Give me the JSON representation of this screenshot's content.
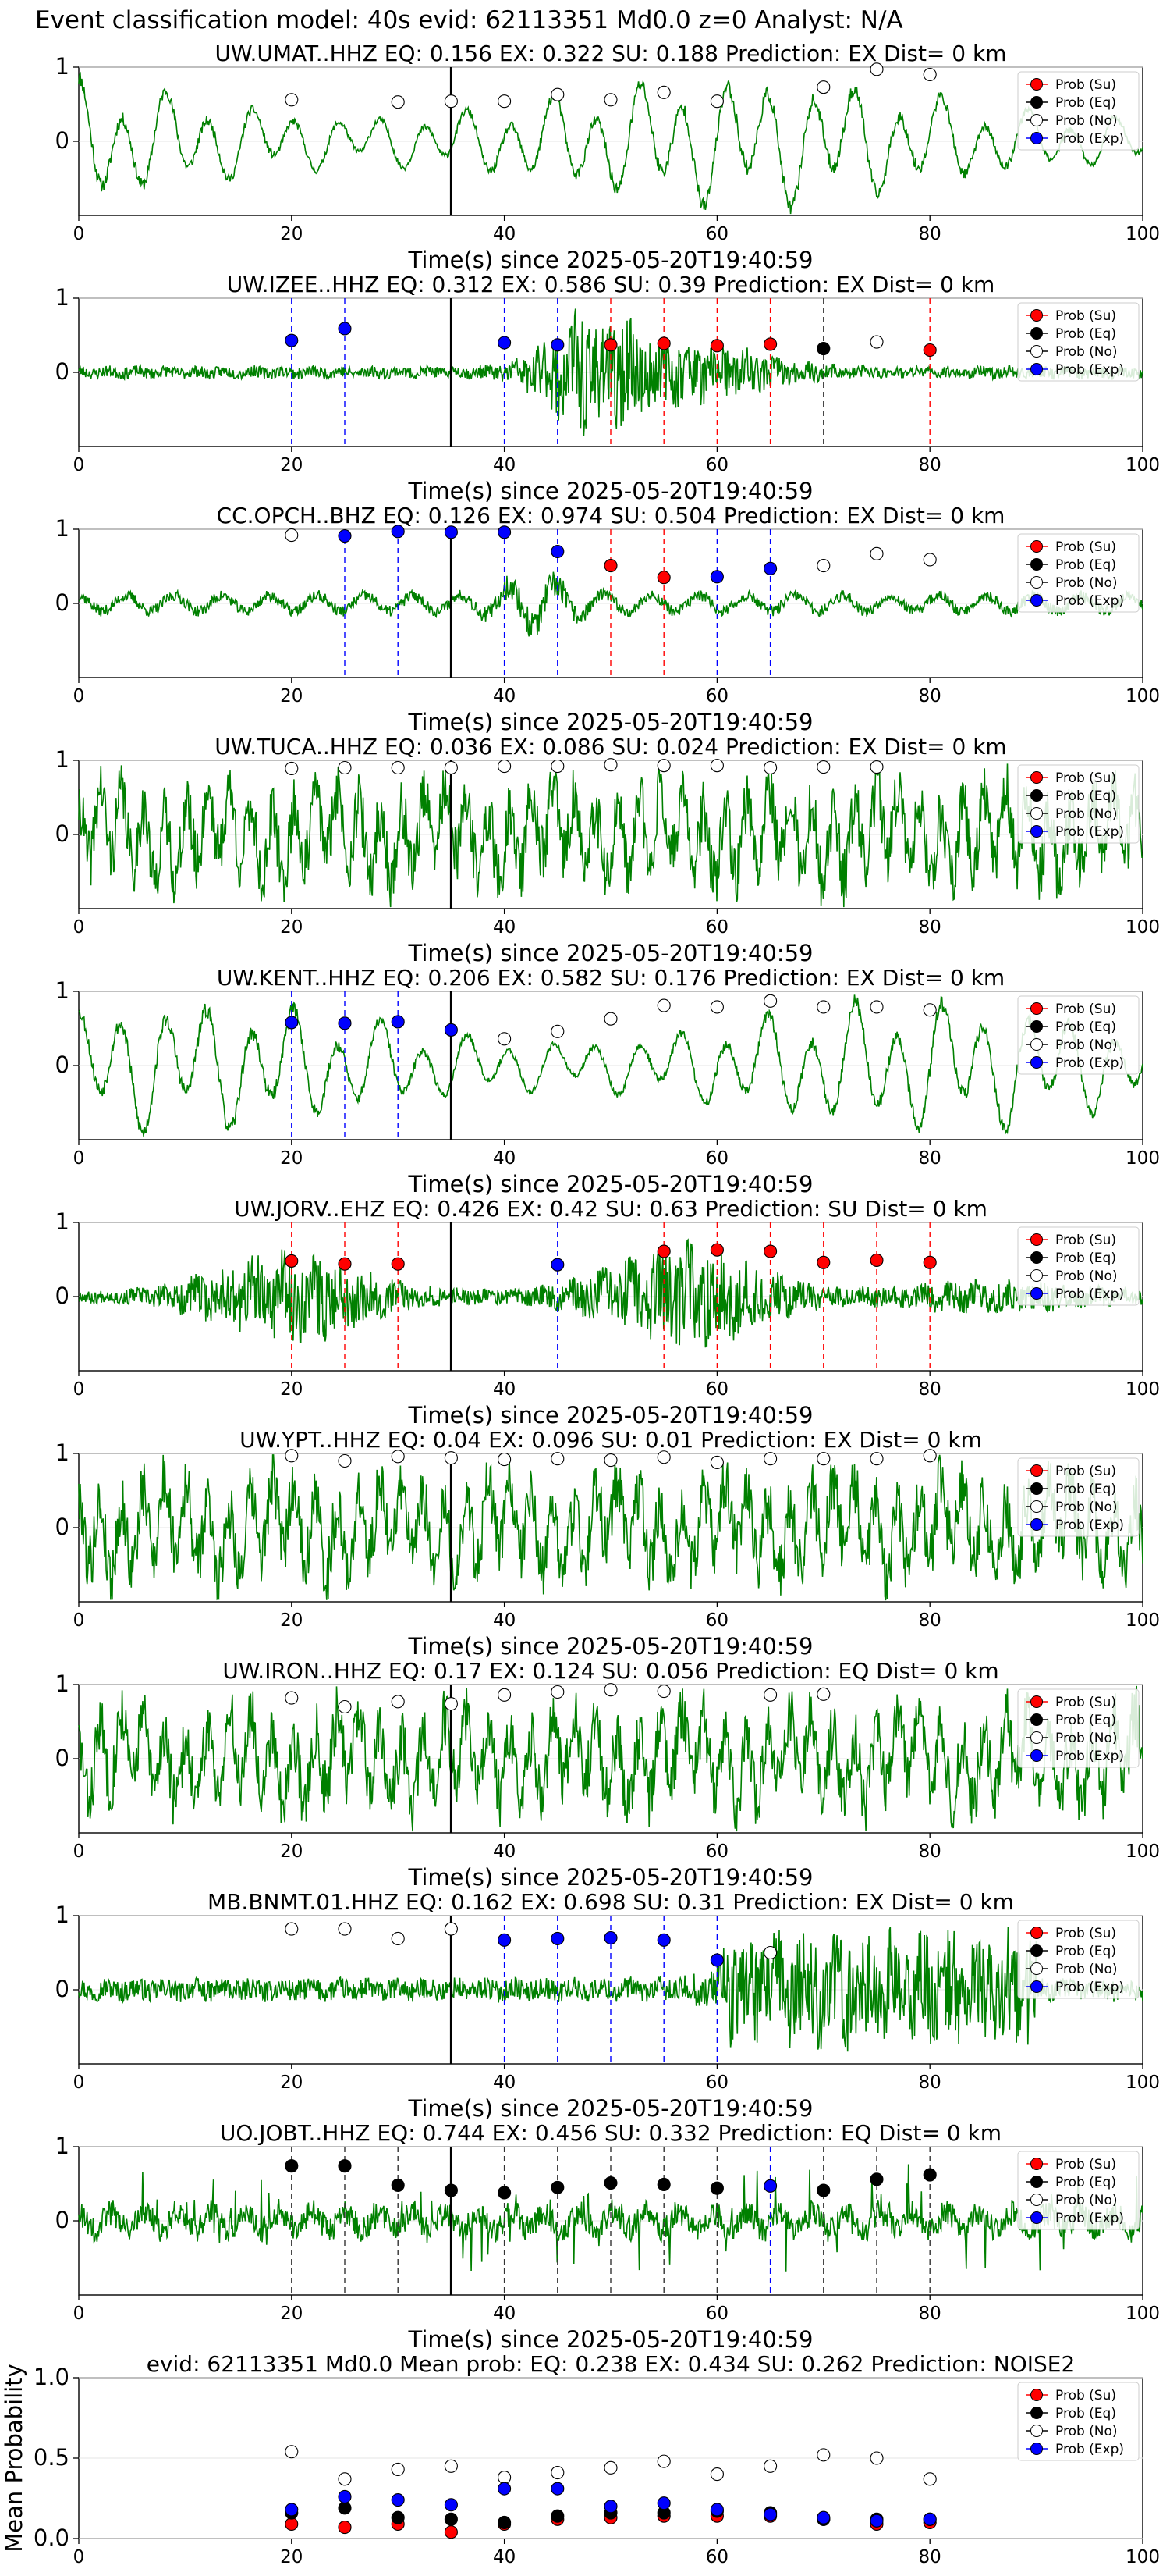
{
  "figure": {
    "suptitle": "Event classification model: 40s evid: 62113351 Md0.0 z=0 Analyst: N/A",
    "x_axis_label": "Time(s) since 2025-05-20T19:40:59",
    "legend": [
      "Prob (Su)",
      "Prob (Eq)",
      "Prob (No)",
      "Prob (Exp)"
    ],
    "colors": {
      "waveform": "#008000",
      "su": "#ff0000",
      "eq": "#000000",
      "no": "#ffffff",
      "exp": "#0000ff",
      "onset_line": "#000000"
    }
  },
  "chart_data": [
    {
      "type": "line",
      "title": "UW.UMAT..HHZ   EQ: 0.156  EX: 0.322  SU: 0.188   Prediction: EX    Dist= 0 km",
      "station": "UW.UMAT..HHZ",
      "eq": 0.156,
      "ex": 0.322,
      "su": 0.188,
      "prediction": "EX",
      "dist_km": 0,
      "xlim": [
        0,
        100
      ],
      "ylim": [
        -1,
        1
      ],
      "xticks": [
        0,
        20,
        40,
        60,
        80,
        100
      ],
      "yticks": [
        0,
        1
      ],
      "xlabel": "Time(s) since 2025-05-20T19:40:59",
      "onset": 35,
      "grid": true,
      "legend_position": "upper right",
      "wave": {
        "style": "lowfreq",
        "seed": 11
      },
      "points": [
        {
          "t": 20,
          "p": 0.56,
          "c": "no"
        },
        {
          "t": 30,
          "p": 0.53,
          "c": "no"
        },
        {
          "t": 35,
          "p": 0.54,
          "c": "no"
        },
        {
          "t": 40,
          "p": 0.54,
          "c": "no"
        },
        {
          "t": 45,
          "p": 0.63,
          "c": "no"
        },
        {
          "t": 50,
          "p": 0.56,
          "c": "no"
        },
        {
          "t": 55,
          "p": 0.66,
          "c": "no"
        },
        {
          "t": 60,
          "p": 0.54,
          "c": "no"
        },
        {
          "t": 70,
          "p": 0.73,
          "c": "no"
        },
        {
          "t": 75,
          "p": 0.97,
          "c": "no"
        },
        {
          "t": 80,
          "p": 0.9,
          "c": "no"
        }
      ]
    },
    {
      "type": "line",
      "title": "UW.IZEE..HHZ   EQ: 0.312  EX: 0.586  SU: 0.39   Prediction: EX    Dist= 0 km",
      "station": "UW.IZEE..HHZ",
      "eq": 0.312,
      "ex": 0.586,
      "su": 0.39,
      "prediction": "EX",
      "dist_km": 0,
      "xlim": [
        0,
        100
      ],
      "ylim": [
        -1,
        1
      ],
      "xticks": [
        0,
        20,
        40,
        60,
        80,
        100
      ],
      "yticks": [
        0,
        1
      ],
      "xlabel": "Time(s) since 2025-05-20T19:40:59",
      "onset": 35,
      "grid": true,
      "legend_position": "upper right",
      "wave": {
        "style": "burst",
        "seed": 23
      },
      "points": [
        {
          "t": 20,
          "p": 0.43,
          "c": "exp"
        },
        {
          "t": 25,
          "p": 0.59,
          "c": "exp"
        },
        {
          "t": 40,
          "p": 0.4,
          "c": "exp"
        },
        {
          "t": 45,
          "p": 0.37,
          "c": "exp"
        },
        {
          "t": 50,
          "p": 0.37,
          "c": "su"
        },
        {
          "t": 55,
          "p": 0.39,
          "c": "su"
        },
        {
          "t": 60,
          "p": 0.36,
          "c": "su"
        },
        {
          "t": 65,
          "p": 0.38,
          "c": "su"
        },
        {
          "t": 70,
          "p": 0.32,
          "c": "eq"
        },
        {
          "t": 75,
          "p": 0.41,
          "c": "no"
        },
        {
          "t": 80,
          "p": 0.3,
          "c": "su"
        }
      ]
    },
    {
      "type": "line",
      "title": "CC.OPCH..BHZ   EQ: 0.126  EX: 0.974  SU: 0.504   Prediction: EX    Dist= 0 km",
      "station": "CC.OPCH..BHZ",
      "eq": 0.126,
      "ex": 0.974,
      "su": 0.504,
      "prediction": "EX",
      "dist_km": 0,
      "xlim": [
        0,
        100
      ],
      "ylim": [
        -1,
        1
      ],
      "xticks": [
        0,
        20,
        40,
        60,
        80,
        100
      ],
      "yticks": [
        0,
        1
      ],
      "xlabel": "Time(s) since 2025-05-20T19:40:59",
      "onset": 35,
      "grid": true,
      "legend_position": "upper right",
      "wave": {
        "style": "mixed",
        "seed": 37
      },
      "points": [
        {
          "t": 20,
          "p": 0.92,
          "c": "no"
        },
        {
          "t": 25,
          "p": 0.91,
          "c": "exp"
        },
        {
          "t": 30,
          "p": 0.97,
          "c": "exp"
        },
        {
          "t": 35,
          "p": 0.96,
          "c": "exp"
        },
        {
          "t": 40,
          "p": 0.96,
          "c": "exp"
        },
        {
          "t": 45,
          "p": 0.7,
          "c": "exp"
        },
        {
          "t": 50,
          "p": 0.51,
          "c": "su"
        },
        {
          "t": 55,
          "p": 0.35,
          "c": "su"
        },
        {
          "t": 60,
          "p": 0.36,
          "c": "exp"
        },
        {
          "t": 65,
          "p": 0.47,
          "c": "exp"
        },
        {
          "t": 70,
          "p": 0.51,
          "c": "no"
        },
        {
          "t": 75,
          "p": 0.67,
          "c": "no"
        },
        {
          "t": 80,
          "p": 0.59,
          "c": "no"
        }
      ]
    },
    {
      "type": "line",
      "title": "UW.TUCA..HHZ   EQ: 0.036  EX: 0.086  SU: 0.024   Prediction: EX    Dist= 0 km",
      "station": "UW.TUCA..HHZ",
      "eq": 0.036,
      "ex": 0.086,
      "su": 0.024,
      "prediction": "EX",
      "dist_km": 0,
      "xlim": [
        0,
        100
      ],
      "ylim": [
        -1,
        1
      ],
      "xticks": [
        0,
        20,
        40,
        60,
        80,
        100
      ],
      "yticks": [
        0,
        1
      ],
      "xlabel": "Time(s) since 2025-05-20T19:40:59",
      "onset": 35,
      "grid": true,
      "legend_position": "upper right",
      "wave": {
        "style": "noise",
        "seed": 41
      },
      "points": [
        {
          "t": 20,
          "p": 0.89,
          "c": "no"
        },
        {
          "t": 25,
          "p": 0.9,
          "c": "no"
        },
        {
          "t": 30,
          "p": 0.9,
          "c": "no"
        },
        {
          "t": 35,
          "p": 0.9,
          "c": "no"
        },
        {
          "t": 40,
          "p": 0.92,
          "c": "no"
        },
        {
          "t": 45,
          "p": 0.92,
          "c": "no"
        },
        {
          "t": 50,
          "p": 0.94,
          "c": "no"
        },
        {
          "t": 55,
          "p": 0.93,
          "c": "no"
        },
        {
          "t": 60,
          "p": 0.93,
          "c": "no"
        },
        {
          "t": 65,
          "p": 0.9,
          "c": "no"
        },
        {
          "t": 70,
          "p": 0.91,
          "c": "no"
        },
        {
          "t": 75,
          "p": 0.91,
          "c": "no"
        }
      ]
    },
    {
      "type": "line",
      "title": "UW.KENT..HHZ   EQ: 0.206  EX: 0.582  SU: 0.176   Prediction: EX    Dist= 0 km",
      "station": "UW.KENT..HHZ",
      "eq": 0.206,
      "ex": 0.582,
      "su": 0.176,
      "prediction": "EX",
      "dist_km": 0,
      "xlim": [
        0,
        100
      ],
      "ylim": [
        -1,
        1
      ],
      "xticks": [
        0,
        20,
        40,
        60,
        80,
        100
      ],
      "yticks": [
        0,
        1
      ],
      "xlabel": "Time(s) since 2025-05-20T19:40:59",
      "onset": 35,
      "grid": true,
      "legend_position": "upper right",
      "wave": {
        "style": "lowfreq",
        "seed": 53
      },
      "points": [
        {
          "t": 20,
          "p": 0.58,
          "c": "exp"
        },
        {
          "t": 25,
          "p": 0.57,
          "c": "exp"
        },
        {
          "t": 30,
          "p": 0.59,
          "c": "exp"
        },
        {
          "t": 35,
          "p": 0.48,
          "c": "exp"
        },
        {
          "t": 40,
          "p": 0.36,
          "c": "no"
        },
        {
          "t": 45,
          "p": 0.46,
          "c": "no"
        },
        {
          "t": 50,
          "p": 0.63,
          "c": "no"
        },
        {
          "t": 55,
          "p": 0.81,
          "c": "no"
        },
        {
          "t": 60,
          "p": 0.79,
          "c": "no"
        },
        {
          "t": 65,
          "p": 0.87,
          "c": "no"
        },
        {
          "t": 70,
          "p": 0.79,
          "c": "no"
        },
        {
          "t": 75,
          "p": 0.79,
          "c": "no"
        },
        {
          "t": 80,
          "p": 0.75,
          "c": "no"
        }
      ]
    },
    {
      "type": "line",
      "title": "UW.JORV..EHZ   EQ: 0.426  EX: 0.42  SU: 0.63   Prediction: SU    Dist= 0 km",
      "station": "UW.JORV..EHZ",
      "eq": 0.426,
      "ex": 0.42,
      "su": 0.63,
      "prediction": "SU",
      "dist_km": 0,
      "xlim": [
        0,
        100
      ],
      "ylim": [
        -1,
        1
      ],
      "xticks": [
        0,
        20,
        40,
        60,
        80,
        100
      ],
      "yticks": [
        0,
        1
      ],
      "xlabel": "Time(s) since 2025-05-20T19:40:59",
      "onset": 35,
      "grid": true,
      "legend_position": "upper right",
      "wave": {
        "style": "twobursts",
        "seed": 67
      },
      "points": [
        {
          "t": 20,
          "p": 0.48,
          "c": "su"
        },
        {
          "t": 25,
          "p": 0.44,
          "c": "su"
        },
        {
          "t": 30,
          "p": 0.44,
          "c": "su"
        },
        {
          "t": 45,
          "p": 0.43,
          "c": "exp"
        },
        {
          "t": 55,
          "p": 0.61,
          "c": "su"
        },
        {
          "t": 60,
          "p": 0.63,
          "c": "su"
        },
        {
          "t": 65,
          "p": 0.61,
          "c": "su"
        },
        {
          "t": 70,
          "p": 0.46,
          "c": "su"
        },
        {
          "t": 75,
          "p": 0.49,
          "c": "su"
        },
        {
          "t": 80,
          "p": 0.46,
          "c": "su"
        }
      ]
    },
    {
      "type": "line",
      "title": "UW.YPT..HHZ   EQ: 0.04  EX: 0.096  SU: 0.01   Prediction: EX    Dist= 0 km",
      "station": "UW.YPT..HHZ",
      "eq": 0.04,
      "ex": 0.096,
      "su": 0.01,
      "prediction": "EX",
      "dist_km": 0,
      "xlim": [
        0,
        100
      ],
      "ylim": [
        -1,
        1
      ],
      "xticks": [
        0,
        20,
        40,
        60,
        80,
        100
      ],
      "yticks": [
        0,
        1
      ],
      "xlabel": "Time(s) since 2025-05-20T19:40:59",
      "onset": 35,
      "grid": true,
      "legend_position": "upper right",
      "wave": {
        "style": "noise",
        "seed": 79
      },
      "points": [
        {
          "t": 20,
          "p": 0.97,
          "c": "no"
        },
        {
          "t": 25,
          "p": 0.9,
          "c": "no"
        },
        {
          "t": 30,
          "p": 0.96,
          "c": "no"
        },
        {
          "t": 35,
          "p": 0.94,
          "c": "no"
        },
        {
          "t": 40,
          "p": 0.92,
          "c": "no"
        },
        {
          "t": 45,
          "p": 0.93,
          "c": "no"
        },
        {
          "t": 50,
          "p": 0.91,
          "c": "no"
        },
        {
          "t": 55,
          "p": 0.95,
          "c": "no"
        },
        {
          "t": 60,
          "p": 0.88,
          "c": "no"
        },
        {
          "t": 65,
          "p": 0.93,
          "c": "no"
        },
        {
          "t": 70,
          "p": 0.93,
          "c": "no"
        },
        {
          "t": 75,
          "p": 0.93,
          "c": "no"
        },
        {
          "t": 80,
          "p": 0.97,
          "c": "no"
        }
      ]
    },
    {
      "type": "line",
      "title": "UW.IRON..HHZ   EQ: 0.17  EX: 0.124  SU: 0.056   Prediction: EQ    Dist= 0 km",
      "station": "UW.IRON..HHZ",
      "eq": 0.17,
      "ex": 0.124,
      "su": 0.056,
      "prediction": "EQ",
      "dist_km": 0,
      "xlim": [
        0,
        100
      ],
      "ylim": [
        -1,
        1
      ],
      "xticks": [
        0,
        20,
        40,
        60,
        80,
        100
      ],
      "yticks": [
        0,
        1
      ],
      "xlabel": "Time(s) since 2025-05-20T19:40:59",
      "onset": 35,
      "grid": true,
      "legend_position": "upper right",
      "wave": {
        "style": "noise",
        "seed": 83
      },
      "points": [
        {
          "t": 20,
          "p": 0.82,
          "c": "no"
        },
        {
          "t": 25,
          "p": 0.7,
          "c": "no"
        },
        {
          "t": 30,
          "p": 0.77,
          "c": "no"
        },
        {
          "t": 35,
          "p": 0.74,
          "c": "no"
        },
        {
          "t": 40,
          "p": 0.86,
          "c": "no"
        },
        {
          "t": 45,
          "p": 0.9,
          "c": "no"
        },
        {
          "t": 50,
          "p": 0.93,
          "c": "no"
        },
        {
          "t": 55,
          "p": 0.91,
          "c": "no"
        },
        {
          "t": 65,
          "p": 0.86,
          "c": "no"
        },
        {
          "t": 70,
          "p": 0.87,
          "c": "no"
        }
      ]
    },
    {
      "type": "line",
      "title": "MB.BNMT.01.HHZ   EQ: 0.162  EX: 0.698  SU: 0.31   Prediction: EX    Dist= 0 km",
      "station": "MB.BNMT.01.HHZ",
      "eq": 0.162,
      "ex": 0.698,
      "su": 0.31,
      "prediction": "EX",
      "dist_km": 0,
      "xlim": [
        0,
        100
      ],
      "ylim": [
        -1,
        1
      ],
      "xticks": [
        0,
        20,
        40,
        60,
        80,
        100
      ],
      "yticks": [
        0,
        1
      ],
      "xlabel": "Time(s) since 2025-05-20T19:40:59",
      "onset": 35,
      "grid": true,
      "legend_position": "upper right",
      "wave": {
        "style": "lateburst",
        "seed": 97
      },
      "points": [
        {
          "t": 20,
          "p": 0.82,
          "c": "no"
        },
        {
          "t": 25,
          "p": 0.82,
          "c": "no"
        },
        {
          "t": 30,
          "p": 0.69,
          "c": "no"
        },
        {
          "t": 35,
          "p": 0.82,
          "c": "no"
        },
        {
          "t": 40,
          "p": 0.67,
          "c": "exp"
        },
        {
          "t": 45,
          "p": 0.69,
          "c": "exp"
        },
        {
          "t": 50,
          "p": 0.7,
          "c": "exp"
        },
        {
          "t": 55,
          "p": 0.67,
          "c": "exp"
        },
        {
          "t": 60,
          "p": 0.4,
          "c": "exp"
        },
        {
          "t": 65,
          "p": 0.5,
          "c": "no"
        }
      ]
    },
    {
      "type": "line",
      "title": "UO.JOBT..HHZ   EQ: 0.744  EX: 0.456  SU: 0.332   Prediction: EQ    Dist= 0 km",
      "station": "UO.JOBT..HHZ",
      "eq": 0.744,
      "ex": 0.456,
      "su": 0.332,
      "prediction": "EQ",
      "dist_km": 0,
      "xlim": [
        0,
        100
      ],
      "ylim": [
        -1,
        1
      ],
      "xticks": [
        0,
        20,
        40,
        60,
        80,
        100
      ],
      "yticks": [
        0,
        1
      ],
      "xlabel": "Time(s) since 2025-05-20T19:40:59",
      "onset": 35,
      "grid": true,
      "legend_position": "upper right",
      "wave": {
        "style": "spiky",
        "seed": 101
      },
      "points": [
        {
          "t": 20,
          "p": 0.74,
          "c": "eq"
        },
        {
          "t": 25,
          "p": 0.74,
          "c": "eq"
        },
        {
          "t": 30,
          "p": 0.48,
          "c": "eq"
        },
        {
          "t": 35,
          "p": 0.41,
          "c": "eq"
        },
        {
          "t": 40,
          "p": 0.38,
          "c": "eq"
        },
        {
          "t": 45,
          "p": 0.45,
          "c": "eq"
        },
        {
          "t": 50,
          "p": 0.51,
          "c": "eq"
        },
        {
          "t": 55,
          "p": 0.49,
          "c": "eq"
        },
        {
          "t": 60,
          "p": 0.44,
          "c": "eq"
        },
        {
          "t": 65,
          "p": 0.47,
          "c": "exp"
        },
        {
          "t": 70,
          "p": 0.41,
          "c": "eq"
        },
        {
          "t": 75,
          "p": 0.56,
          "c": "eq"
        },
        {
          "t": 80,
          "p": 0.62,
          "c": "eq"
        }
      ]
    },
    {
      "type": "scatter",
      "title": "evid: 62113351  Md0.0   Mean prob:   EQ: 0.238  EX: 0.434  SU: 0.262   Prediction: NOISE2",
      "evid": "62113351",
      "magnitude": "Md0.0",
      "mean_eq": 0.238,
      "mean_ex": 0.434,
      "mean_su": 0.262,
      "prediction": "NOISE2",
      "xlim": [
        0,
        100
      ],
      "ylim": [
        0,
        1
      ],
      "xticks": [
        0,
        20,
        40,
        60,
        80,
        100
      ],
      "yticks": [
        0.0,
        0.5,
        1.0
      ],
      "ylabel": "Mean Probability",
      "grid": true,
      "legend_position": "upper right",
      "x": [
        20,
        25,
        30,
        35,
        40,
        45,
        50,
        55,
        60,
        65,
        70,
        75,
        80
      ],
      "series": [
        {
          "name": "Prob (Su)",
          "key": "su",
          "values": [
            0.09,
            0.07,
            0.09,
            0.04,
            0.09,
            0.12,
            0.13,
            0.14,
            0.14,
            0.14,
            0.12,
            0.09,
            0.1
          ]
        },
        {
          "name": "Prob (Eq)",
          "key": "eq",
          "values": [
            0.16,
            0.19,
            0.13,
            0.12,
            0.1,
            0.14,
            0.16,
            0.16,
            0.17,
            0.16,
            0.12,
            0.12,
            0.12
          ]
        },
        {
          "name": "Prob (No)",
          "key": "no",
          "values": [
            0.54,
            0.37,
            0.43,
            0.45,
            0.38,
            0.41,
            0.44,
            0.48,
            0.4,
            0.45,
            0.52,
            0.5,
            0.37
          ]
        },
        {
          "name": "Prob (Exp)",
          "key": "exp",
          "values": [
            0.18,
            0.26,
            0.24,
            0.21,
            0.31,
            0.31,
            0.2,
            0.22,
            0.18,
            0.15,
            0.13,
            0.11,
            0.12
          ]
        }
      ]
    }
  ]
}
